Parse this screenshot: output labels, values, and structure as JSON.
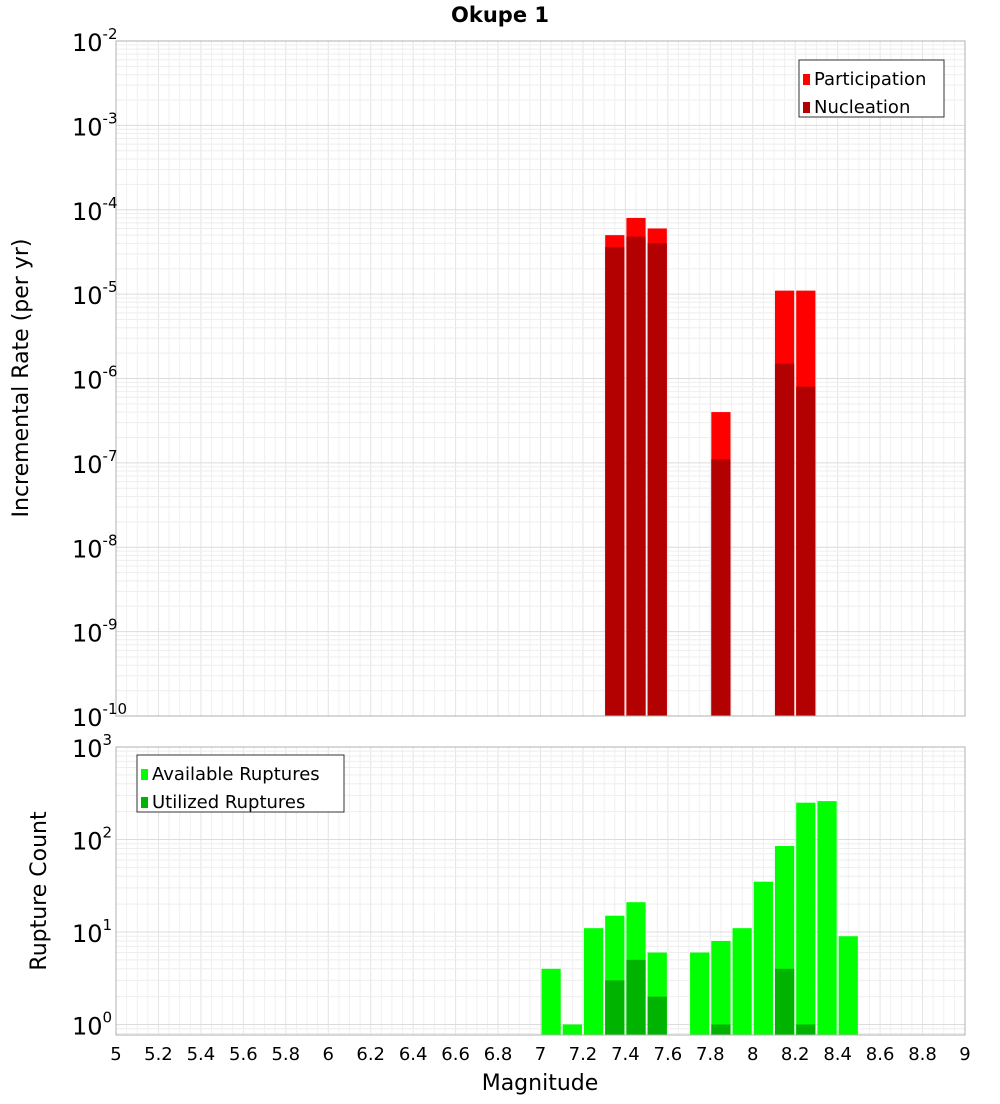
{
  "chart_data": {
    "title": "Okupe 1",
    "xlabel": "Magnitude",
    "x_ticks": [
      "5",
      "5.2",
      "5.4",
      "5.6",
      "5.8",
      "6",
      "6.2",
      "6.4",
      "6.6",
      "6.8",
      "7",
      "7.2",
      "7.4",
      "7.6",
      "7.8",
      "8",
      "8.2",
      "8.4",
      "8.6",
      "8.8",
      "9"
    ],
    "xlim": [
      5,
      9
    ],
    "bin_width": 0.1,
    "grid": true,
    "panels": [
      {
        "type": "bar",
        "ylabel": "Incremental Rate (per yr)",
        "yscale": "log",
        "ylim": [
          1e-10,
          0.01
        ],
        "y_tick_exponents": [
          -10,
          -9,
          -8,
          -7,
          -6,
          -5,
          -4,
          -3,
          -2
        ],
        "legend_position": "top-right",
        "series": [
          {
            "name": "Participation",
            "color": "#ff0000",
            "x": [
              7.35,
              7.45,
              7.55,
              7.85,
              8.15,
              8.25
            ],
            "values": [
              5e-05,
              8e-05,
              6e-05,
              4e-07,
              1.1e-05,
              1.1e-05
            ]
          },
          {
            "name": "Nucleation",
            "color": "#b30000",
            "x": [
              7.35,
              7.45,
              7.55,
              7.85,
              8.15,
              8.25
            ],
            "values": [
              3.6e-05,
              4.8e-05,
              4e-05,
              1.1e-07,
              1.5e-06,
              8e-07
            ]
          }
        ]
      },
      {
        "type": "bar",
        "ylabel": "Rupture Count",
        "yscale": "log",
        "ylim": [
          0.77,
          1000
        ],
        "y_tick_exponents": [
          0,
          1,
          2,
          3
        ],
        "legend_position": "top-left",
        "series": [
          {
            "name": "Available Ruptures",
            "color": "#00ff00",
            "x": [
              7.05,
              7.15,
              7.25,
              7.35,
              7.45,
              7.55,
              7.75,
              7.85,
              7.95,
              8.05,
              8.15,
              8.25,
              8.35,
              8.45
            ],
            "values": [
              4,
              1,
              11,
              15,
              21,
              6,
              6,
              8,
              11,
              35,
              85,
              250,
              260,
              9
            ]
          },
          {
            "name": "Utilized Ruptures",
            "color": "#00b300",
            "x": [
              7.35,
              7.45,
              7.55,
              7.85,
              8.15,
              8.25
            ],
            "values": [
              3,
              5,
              2,
              1,
              4,
              1
            ]
          }
        ]
      }
    ]
  }
}
